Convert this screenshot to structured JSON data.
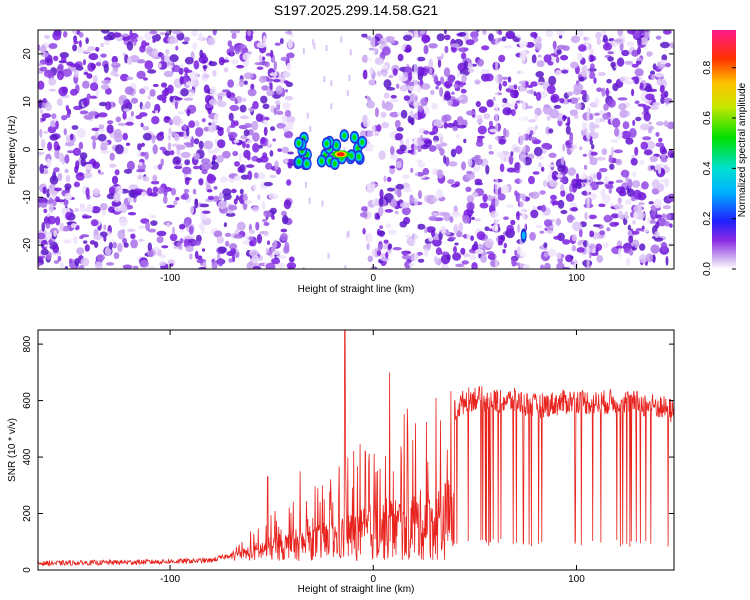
{
  "title": "S197.2025.299.14.58.G21",
  "colors": {
    "spectrogram_base": "#7a1fe0",
    "snr_line": "#e8231e",
    "axis": "#000000"
  },
  "chart_data": [
    {
      "type": "heatmap",
      "xlabel": "Height of straight line (km)",
      "ylabel": "Frequency (Hz)",
      "xlim": [
        -165,
        148
      ],
      "ylim": [
        -25,
        25
      ],
      "xticks": [
        -100,
        0,
        100
      ],
      "xtick_labels": [
        "-100",
        "0",
        "100"
      ],
      "yticks": [
        -20,
        -10,
        0,
        10,
        20
      ],
      "ytick_labels": [
        "-20",
        "-10",
        "0",
        "10",
        "20"
      ],
      "colorbar": {
        "label": "Normalized spectral amplitude",
        "range": [
          0.0,
          0.95
        ],
        "ticks": [
          0.0,
          0.2,
          0.4,
          0.6,
          0.8
        ],
        "tick_labels": [
          "0.0",
          "0.2",
          "0.4",
          "0.6",
          "0.8"
        ],
        "colormap": "rainbow (white-violet-blue-cyan-green-yellow-red-magenta)"
      },
      "features": [
        {
          "name": "blank band",
          "x_range": [
            -40,
            -5
          ]
        },
        {
          "name": "strong signal",
          "x_range": [
            -38,
            -5
          ],
          "y_range": [
            -3,
            3
          ],
          "peak_amplitude": 0.9,
          "peak_x": -16,
          "peak_y": -1
        },
        {
          "name": "isolated blob",
          "x": 74,
          "y": -18,
          "amplitude": 0.4
        }
      ]
    },
    {
      "type": "line",
      "xlabel": "Height of straight line (km)",
      "ylabel": "SNR (10 * v/v)",
      "xlim": [
        -165,
        148
      ],
      "ylim": [
        0,
        850
      ],
      "xticks": [
        -100,
        0,
        100
      ],
      "xtick_labels": [
        "-100",
        "0",
        "100"
      ],
      "yticks": [
        0,
        200,
        400,
        600,
        800
      ],
      "ytick_labels": [
        "0",
        "200",
        "400",
        "600",
        "800"
      ],
      "series": [
        {
          "name": "SNR",
          "x": [
            -165,
            -140,
            -110,
            -80,
            -70,
            -60,
            -50,
            -40,
            -30,
            -20,
            -15,
            -10,
            -5,
            0,
            5,
            10,
            20,
            30,
            40,
            45,
            50,
            60,
            70,
            80,
            90,
            100,
            110,
            120,
            130,
            140,
            148
          ],
          "y": [
            20,
            22,
            25,
            30,
            50,
            110,
            160,
            200,
            230,
            260,
            300,
            330,
            350,
            380,
            400,
            420,
            450,
            480,
            560,
            600,
            610,
            600,
            600,
            580,
            590,
            600,
            590,
            600,
            590,
            580,
            560
          ],
          "spike_peaks": [
            {
              "x": -14,
              "y": 850
            },
            {
              "x": 8,
              "y": 700
            },
            {
              "x": -52,
              "y": 330
            },
            {
              "x": -36,
              "y": 350
            },
            {
              "x": -25,
              "y": 300
            }
          ],
          "dropout_floor": 80
        }
      ]
    }
  ]
}
